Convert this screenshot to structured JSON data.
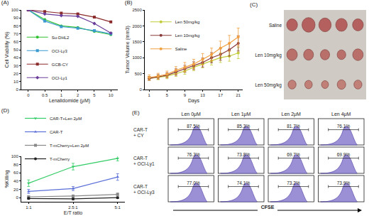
{
  "chart_data": [
    {
      "type": "line",
      "title": "(A)",
      "x_label": "Lenalidomide (μM)",
      "y_label": "Cell Viability (%)",
      "categories": [
        "0",
        "0.5",
        "1",
        "2",
        "5",
        "10"
      ],
      "ylim": [
        0,
        100
      ],
      "yticks": [
        0,
        10,
        20,
        30,
        40,
        50,
        60,
        70,
        80,
        90,
        100
      ],
      "grid": false,
      "legend": "lower left",
      "series": [
        {
          "name": "Su-DHL2",
          "color": "#2fc02f",
          "marker": "circle",
          "values": [
            100,
            88,
            80,
            78,
            73,
            69
          ]
        },
        {
          "name": "OCI-Ly3",
          "color": "#3a9ad0",
          "marker": "square",
          "values": [
            100,
            86,
            79,
            77,
            74,
            70
          ]
        },
        {
          "name": "GCB-CY",
          "color": "#8b2a2a",
          "marker": "square",
          "values": [
            100,
            98,
            96,
            95,
            91,
            85
          ]
        },
        {
          "name": "OCI-Ly1",
          "color": "#6a3d9a",
          "marker": "diamond",
          "values": [
            100,
            95,
            93,
            92,
            83,
            71
          ]
        }
      ]
    },
    {
      "type": "line",
      "title": "(B)",
      "x_label": "Days",
      "y_label": "Tumor Volume (mm3)",
      "x": [
        1,
        3,
        5,
        7,
        9,
        11,
        13,
        15,
        17,
        19,
        21
      ],
      "xlim": [
        0,
        22
      ],
      "xticks": [
        1,
        5,
        9,
        13,
        17,
        21
      ],
      "ylim": [
        0,
        2500
      ],
      "yticks": [
        0,
        500,
        1000,
        1500,
        2000,
        2500
      ],
      "grid": false,
      "legend": "upper left",
      "series": [
        {
          "name": "Len 50mg/kg",
          "color": "#c2cc3a",
          "marker": "circle",
          "values": [
            350,
            380,
            420,
            500,
            580,
            700,
            800,
            900,
            1000,
            1050,
            1150
          ],
          "errors": [
            60,
            70,
            80,
            90,
            100,
            110,
            120,
            130,
            150,
            160,
            180
          ]
        },
        {
          "name": "Len 10mg/kg",
          "color": "#8b3a3a",
          "marker": "circle",
          "values": [
            350,
            400,
            450,
            550,
            650,
            750,
            850,
            1000,
            1100,
            1250,
            1450
          ],
          "errors": [
            60,
            70,
            80,
            100,
            110,
            120,
            140,
            160,
            180,
            200,
            240
          ]
        },
        {
          "name": "Saline",
          "color": "#f0a040",
          "marker": "circle",
          "values": [
            380,
            420,
            480,
            600,
            700,
            800,
            950,
            1100,
            1300,
            1450,
            1650
          ],
          "errors": [
            80,
            90,
            100,
            120,
            150,
            150,
            180,
            200,
            220,
            250,
            280
          ]
        }
      ]
    },
    {
      "type": "line",
      "title": "(D)",
      "x_label": "E/T ratio",
      "y_label": "%Killing",
      "categories": [
        "1:1",
        "2.5:1",
        "5:1"
      ],
      "ylim": [
        -10,
        100
      ],
      "yticks": [
        0,
        20,
        40,
        60,
        80,
        100
      ],
      "grid": false,
      "legend": "top",
      "series": [
        {
          "name": "CAR-T+Len 2μM",
          "color": "#33cc66",
          "marker": "triangle-down",
          "values": [
            35,
            75,
            95
          ],
          "errors": [
            8,
            8,
            6
          ]
        },
        {
          "name": "CAR-T",
          "color": "#5a6fd8",
          "marker": "triangle-up",
          "values": [
            15,
            22,
            50
          ],
          "errors": [
            5,
            5,
            8
          ]
        },
        {
          "name": "T-mCherry+Len 2μM",
          "color": "#888888",
          "marker": "square",
          "values": [
            2,
            4,
            8
          ],
          "errors": [
            2,
            2,
            3
          ]
        },
        {
          "name": "T-mCherry",
          "color": "#222222",
          "marker": "circle",
          "values": [
            -2,
            -3,
            0
          ],
          "errors": [
            2,
            2,
            2
          ]
        }
      ]
    }
  ],
  "tumor_photos": {
    "title": "(C)",
    "rows": [
      "Saline",
      "Len 10mg/kg",
      "Len 50mg/kg"
    ]
  },
  "cfse_histograms": {
    "title": "(E)",
    "x_label": "CFSE",
    "columns": [
      "Len 0μM",
      "Len 1μM",
      "Len 2μM",
      "Len 4μM"
    ],
    "rows": [
      {
        "label": [
          "CAR-T",
          "+ CY"
        ],
        "values": [
          87.5,
          85.3,
          81.7,
          76.1
        ],
        "value_labels": [
          "87.5%",
          "85.3%",
          "81.7%",
          "76.1%"
        ]
      },
      {
        "label": [
          "CAR-T",
          "+ OCI-Ly1"
        ],
        "values": [
          76.3,
          73.8,
          69.7,
          69.9
        ],
        "value_labels": [
          "76.3%",
          "73.8%",
          "69.7%",
          "69.9%"
        ]
      },
      {
        "label": [
          "CAR-T",
          "+ OCI-Ly3"
        ],
        "values": [
          77.0,
          74.1,
          73.2,
          73.9
        ],
        "value_labels": [
          "77.0%",
          "74.1%",
          "73.2%",
          "73.9%"
        ]
      }
    ]
  }
}
